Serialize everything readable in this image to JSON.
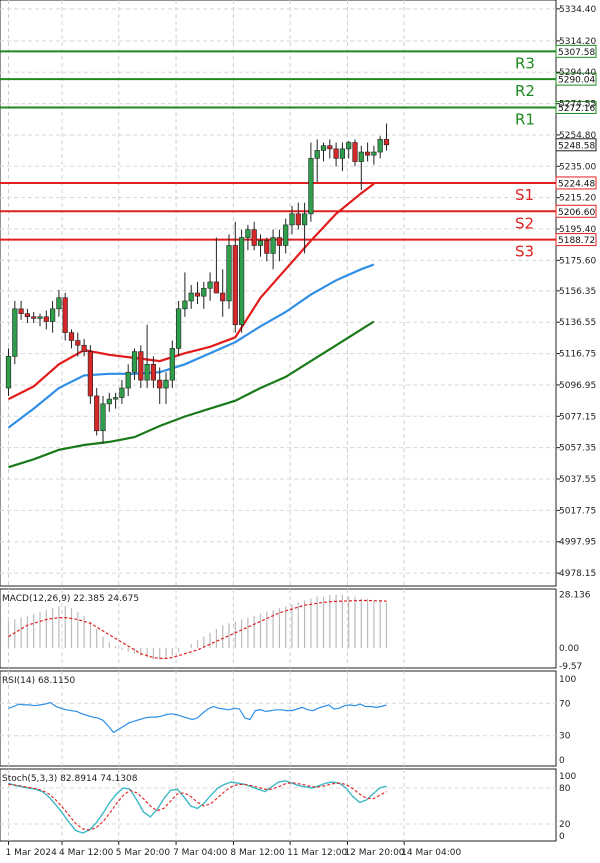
{
  "chart_data": {
    "type": "candlestick",
    "title": "",
    "price_axis": {
      "ylim": [
        4970,
        5340
      ],
      "ticks": [
        5334.4,
        5314.2,
        5294.4,
        5274.55,
        5254.8,
        5235.0,
        5215.2,
        5195.4,
        5175.6,
        5156.35,
        5136.55,
        5116.75,
        5096.95,
        5077.15,
        5057.35,
        5037.55,
        5017.75,
        4997.95,
        4978.15
      ],
      "tick_labels": [
        "5334.40",
        "5314.20",
        "5294.40",
        "5274.55",
        "5254.80",
        "5235.00",
        "5215.20",
        "5195.40",
        "5175.60",
        "5156.35",
        "5136.55",
        "5116.75",
        "5096.95",
        "5077.15",
        "5057.35",
        "5037.55",
        "5017.75",
        "4997.95",
        "4978.15"
      ]
    },
    "x_labels": [
      {
        "label": "1 Mar 2024",
        "i": 0
      },
      {
        "label": "4 Mar 12:00",
        "i": 8.5
      },
      {
        "label": "5 Mar 20:00",
        "i": 17.5
      },
      {
        "label": "7 Mar 04:00",
        "i": 26.6
      },
      {
        "label": "8 Mar 12:00",
        "i": 35.7
      },
      {
        "label": "11 Mar 12:00",
        "i": 44.7
      },
      {
        "label": "12 Mar 20:00",
        "i": 53.8
      },
      {
        "label": "14 Mar 04:00",
        "i": 62.8
      }
    ],
    "levels": [
      {
        "name": "R3",
        "value": 5307.58,
        "label": "5307.58",
        "color": "#1f8a1f"
      },
      {
        "name": "R2",
        "value": 5290.04,
        "label": "5290.04",
        "color": "#1f8a1f"
      },
      {
        "name": "R1",
        "value": 5272.16,
        "label": "5272.16",
        "color": "#1f8a1f"
      },
      {
        "name": "S1",
        "value": 5224.48,
        "label": "5224.48",
        "color": "#e02020"
      },
      {
        "name": "S2",
        "value": 5206.6,
        "label": "5206.60",
        "color": "#e02020"
      },
      {
        "name": "S3",
        "value": 5188.72,
        "label": "5188.72",
        "color": "#e02020"
      }
    ],
    "current_price": {
      "value": 5248.58,
      "label": "5248.58"
    },
    "candles": [
      [
        5095,
        5120,
        5090,
        5115
      ],
      [
        5115,
        5150,
        5110,
        5145
      ],
      [
        5145,
        5150,
        5138,
        5142
      ],
      [
        5142,
        5145,
        5136,
        5140
      ],
      [
        5140,
        5143,
        5136,
        5139
      ],
      [
        5139,
        5142,
        5134,
        5140
      ],
      [
        5140,
        5144,
        5132,
        5137
      ],
      [
        5137,
        5150,
        5130,
        5145
      ],
      [
        5145,
        5157,
        5140,
        5152
      ],
      [
        5152,
        5155,
        5125,
        5130
      ],
      [
        5130,
        5132,
        5120,
        5125
      ],
      [
        5125,
        5130,
        5115,
        5122
      ],
      [
        5122,
        5126,
        5115,
        5118
      ],
      [
        5118,
        5122,
        5085,
        5090
      ],
      [
        5090,
        5095,
        5065,
        5068
      ],
      [
        5068,
        5090,
        5060,
        5085
      ],
      [
        5085,
        5092,
        5080,
        5088
      ],
      [
        5088,
        5092,
        5082,
        5089
      ],
      [
        5089,
        5100,
        5085,
        5095
      ],
      [
        5095,
        5110,
        5090,
        5105
      ],
      [
        5105,
        5120,
        5100,
        5118
      ],
      [
        5118,
        5122,
        5095,
        5100
      ],
      [
        5100,
        5135,
        5095,
        5110
      ],
      [
        5110,
        5115,
        5095,
        5100
      ],
      [
        5100,
        5108,
        5085,
        5095
      ],
      [
        5095,
        5105,
        5085,
        5100
      ],
      [
        5100,
        5125,
        5095,
        5120
      ],
      [
        5120,
        5150,
        5115,
        5145
      ],
      [
        5145,
        5168,
        5140,
        5150
      ],
      [
        5150,
        5160,
        5145,
        5155
      ],
      [
        5155,
        5162,
        5148,
        5153
      ],
      [
        5153,
        5162,
        5145,
        5158
      ],
      [
        5158,
        5168,
        5150,
        5162
      ],
      [
        5162,
        5190,
        5155,
        5155
      ],
      [
        5155,
        5170,
        5140,
        5150
      ],
      [
        5150,
        5192,
        5145,
        5185
      ],
      [
        5185,
        5200,
        5130,
        5135
      ],
      [
        5135,
        5195,
        5130,
        5190
      ],
      [
        5190,
        5198,
        5182,
        5195
      ],
      [
        5195,
        5200,
        5182,
        5185
      ],
      [
        5185,
        5192,
        5178,
        5188
      ],
      [
        5188,
        5190,
        5175,
        5180
      ],
      [
        5180,
        5195,
        5170,
        5190
      ],
      [
        5190,
        5195,
        5175,
        5185
      ],
      [
        5185,
        5202,
        5180,
        5198
      ],
      [
        5198,
        5210,
        5192,
        5205
      ],
      [
        5205,
        5212,
        5195,
        5198
      ],
      [
        5198,
        5212,
        5180,
        5205
      ],
      [
        5205,
        5250,
        5200,
        5240
      ],
      [
        5240,
        5252,
        5225,
        5245
      ],
      [
        5245,
        5250,
        5238,
        5248
      ],
      [
        5248,
        5252,
        5240,
        5246
      ],
      [
        5246,
        5250,
        5235,
        5240
      ],
      [
        5240,
        5250,
        5232,
        5246
      ],
      [
        5246,
        5251,
        5240,
        5250
      ],
      [
        5250,
        5252,
        5235,
        5238
      ],
      [
        5238,
        5248,
        5220,
        5244
      ],
      [
        5244,
        5250,
        5238,
        5242
      ],
      [
        5242,
        5248,
        5236,
        5244
      ],
      [
        5244,
        5254,
        5240,
        5252
      ],
      [
        5252,
        5262,
        5245,
        5248.58
      ]
    ],
    "ma_series": [
      {
        "name": "MA20",
        "color": "#e21b1b",
        "points": [
          [
            0,
            5088
          ],
          [
            4,
            5096
          ],
          [
            8,
            5110
          ],
          [
            12,
            5119
          ],
          [
            16,
            5116
          ],
          [
            20,
            5114
          ],
          [
            24,
            5112
          ],
          [
            28,
            5117
          ],
          [
            32,
            5121
          ],
          [
            36,
            5127
          ],
          [
            40,
            5152
          ],
          [
            44,
            5170
          ],
          [
            48,
            5188
          ],
          [
            52,
            5205
          ],
          [
            56,
            5218
          ],
          [
            58,
            5224
          ]
        ]
      },
      {
        "name": "MA50",
        "color": "#2f8fe6",
        "points": [
          [
            0,
            5070
          ],
          [
            4,
            5082
          ],
          [
            8,
            5095
          ],
          [
            12,
            5103
          ],
          [
            16,
            5104
          ],
          [
            20,
            5104
          ],
          [
            24,
            5105
          ],
          [
            28,
            5110
          ],
          [
            32,
            5117
          ],
          [
            36,
            5124
          ],
          [
            40,
            5134
          ],
          [
            44,
            5143
          ],
          [
            48,
            5154
          ],
          [
            52,
            5163
          ],
          [
            56,
            5170
          ],
          [
            58,
            5173
          ]
        ]
      },
      {
        "name": "MA100",
        "color": "#1a7a1a",
        "points": [
          [
            0,
            5045
          ],
          [
            4,
            5050
          ],
          [
            8,
            5056
          ],
          [
            12,
            5059
          ],
          [
            16,
            5061
          ],
          [
            20,
            5064
          ],
          [
            24,
            5071
          ],
          [
            28,
            5077
          ],
          [
            32,
            5082
          ],
          [
            36,
            5087
          ],
          [
            40,
            5095
          ],
          [
            44,
            5102
          ],
          [
            48,
            5112
          ],
          [
            52,
            5122
          ],
          [
            56,
            5132
          ],
          [
            58,
            5137
          ]
        ]
      }
    ],
    "macd": {
      "label": "MACD(12,26,9) 22.385 24.675",
      "ylim": [
        -9.5,
        30
      ],
      "ticks": [
        {
          "value": 28.136,
          "label": "28.136"
        },
        {
          "value": 0.0,
          "label": "0.00"
        },
        {
          "value": -9.57,
          "label": "-9.57"
        }
      ],
      "histogram": [
        14,
        15,
        16,
        17,
        18,
        19,
        20,
        21,
        22,
        22,
        21,
        19,
        17,
        14,
        10,
        6,
        3,
        1,
        -1,
        -2,
        -3,
        -4,
        -5,
        -6,
        -6,
        -5,
        -4,
        -2,
        0,
        2,
        4,
        6,
        8,
        10,
        12,
        13,
        14,
        15,
        16,
        17,
        18,
        19,
        20,
        21,
        22,
        23,
        24,
        25,
        26,
        27,
        27,
        28,
        28,
        28,
        27,
        27,
        26,
        26,
        25,
        25,
        24
      ],
      "signal": [
        6,
        8,
        10,
        12,
        13,
        14,
        15,
        15.5,
        16,
        16,
        15.5,
        15,
        14,
        13,
        11,
        9,
        7,
        5,
        3,
        1,
        -1,
        -3,
        -4,
        -5,
        -5.5,
        -5.5,
        -5,
        -4,
        -3,
        -2,
        -1,
        0.5,
        2,
        3.5,
        5,
        6.5,
        8,
        9.5,
        11,
        12.5,
        14,
        15.5,
        17,
        18.5,
        19.5,
        20.5,
        21.5,
        22.5,
        23,
        23.5,
        24,
        24.3,
        24.5,
        24.7,
        24.8,
        24.9,
        25,
        25,
        24.9,
        24.8,
        24.7
      ]
    },
    "rsi": {
      "label": "RSI(14) 68.1150",
      "ylim": [
        0,
        100
      ],
      "ticks": [
        100,
        70,
        30,
        0
      ],
      "values": [
        64,
        66,
        69,
        68,
        68,
        67,
        68,
        69,
        71,
        66,
        64,
        62,
        61,
        60,
        57,
        55,
        53,
        52,
        49,
        42,
        34,
        38,
        42,
        46,
        48,
        50,
        52,
        53,
        53,
        54,
        56,
        57,
        56,
        54,
        52,
        50,
        52,
        58,
        63,
        66,
        64,
        63,
        62,
        64,
        63,
        52,
        50,
        61,
        62,
        60,
        61,
        62,
        62,
        61,
        61,
        63,
        65,
        62,
        61,
        64,
        66,
        68,
        63,
        64,
        67,
        68,
        67,
        69,
        66,
        66,
        65,
        66,
        68
      ]
    },
    "stoch": {
      "label": "Stoch(5,3,3) 82.8914 74.1308",
      "ylim": [
        0,
        100
      ],
      "ticks": [
        100,
        80,
        20,
        0
      ],
      "k": [
        88,
        84,
        82,
        80,
        78,
        74,
        65,
        52,
        38,
        22,
        9,
        5,
        10,
        22,
        38,
        56,
        70,
        80,
        78,
        60,
        40,
        32,
        44,
        62,
        76,
        78,
        65,
        50,
        46,
        55,
        68,
        80,
        86,
        90,
        88,
        86,
        82,
        78,
        74,
        82,
        90,
        92,
        88,
        84,
        82,
        80,
        84,
        88,
        90,
        88,
        80,
        66,
        56,
        60,
        70,
        80,
        83
      ],
      "d": [
        86,
        85,
        83,
        81,
        79,
        76,
        70,
        60,
        48,
        34,
        20,
        12,
        10,
        14,
        24,
        38,
        54,
        68,
        76,
        72,
        62,
        50,
        42,
        46,
        58,
        70,
        72,
        66,
        56,
        50,
        54,
        64,
        74,
        82,
        86,
        86,
        84,
        81,
        78,
        78,
        82,
        87,
        89,
        87,
        85,
        82,
        82,
        84,
        87,
        88,
        86,
        79,
        70,
        63,
        62,
        68,
        74
      ]
    }
  }
}
